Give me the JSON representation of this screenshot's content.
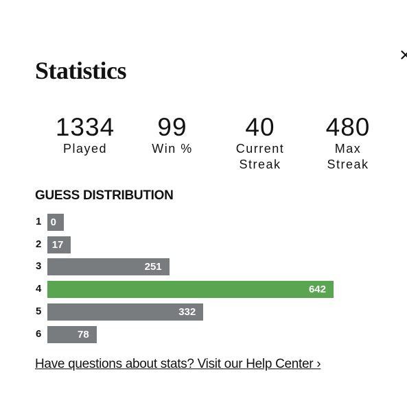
{
  "close": "×",
  "title": "Statistics",
  "stats": [
    {
      "value": 1334,
      "label": "Played"
    },
    {
      "value": 99,
      "label": "Win %"
    },
    {
      "value": 40,
      "label": "Current Streak"
    },
    {
      "value": 480,
      "label": "Max Streak"
    }
  ],
  "distribution": {
    "heading": "GUESS DISTRIBUTION",
    "rows": [
      {
        "guess": 1,
        "count": 0,
        "color": "#787c7e"
      },
      {
        "guess": 2,
        "count": 17,
        "color": "#787c7e"
      },
      {
        "guess": 3,
        "count": 251,
        "color": "#787c7e"
      },
      {
        "guess": 4,
        "count": 642,
        "color": "#5aa550"
      },
      {
        "guess": 5,
        "count": 332,
        "color": "#787c7e"
      },
      {
        "guess": 6,
        "count": 78,
        "color": "#787c7e"
      }
    ]
  },
  "help_link": "Have questions about stats? Visit our Help Center ›"
}
